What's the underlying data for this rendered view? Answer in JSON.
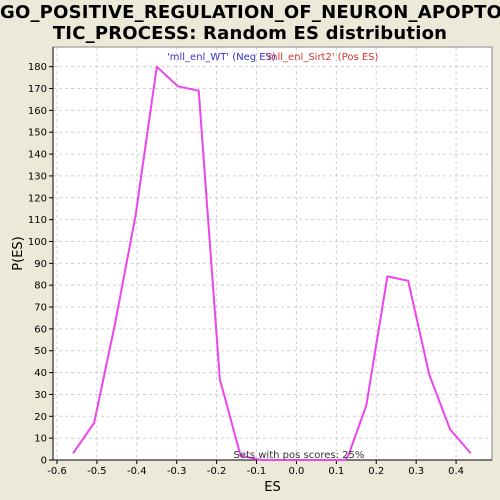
{
  "chart_data": {
    "type": "line",
    "title_lines": [
      "GO_POSITIVE_REGULATION_OF_NEURON_APOPTO",
      "TIC_PROCESS: Random ES distribution"
    ],
    "xlabel": "ES",
    "ylabel": "P(ES)",
    "xlim": [
      -0.61,
      0.49
    ],
    "ylim": [
      0,
      189
    ],
    "x_ticks": [
      -0.6,
      -0.5,
      -0.4,
      -0.3,
      -0.2,
      -0.1,
      0.0,
      0.1,
      0.2,
      0.3,
      0.4
    ],
    "x_tick_labels": [
      "-0.6",
      "-0.5",
      "-0.4",
      "-0.3",
      "-0.2",
      "-0.1",
      "0.0",
      "0.1",
      "0.2",
      "0.3",
      "0.4"
    ],
    "y_ticks": [
      0,
      10,
      20,
      30,
      40,
      50,
      60,
      70,
      80,
      90,
      100,
      110,
      120,
      130,
      140,
      150,
      160,
      170,
      180
    ],
    "grid": true,
    "legend": {
      "neg": "'mll_enl_WT' (Neg ES)",
      "pos": "'mll_enl_Sirt2' (Pos ES)",
      "placement": "top-center"
    },
    "annotation": "Sets with pos scores: 25%",
    "series": [
      {
        "color": "#ee44ee",
        "points": [
          [
            -0.56,
            3
          ],
          [
            -0.507,
            17
          ],
          [
            -0.455,
            62
          ],
          [
            -0.403,
            112
          ],
          [
            -0.35,
            180
          ],
          [
            -0.297,
            171
          ],
          [
            -0.245,
            169
          ],
          [
            -0.192,
            37
          ],
          [
            -0.14,
            2
          ],
          [
            -0.088,
            0
          ],
          [
            -0.035,
            0
          ],
          [
            0.018,
            0
          ],
          [
            0.07,
            0
          ],
          [
            0.122,
            0
          ],
          [
            0.13,
            2
          ],
          [
            0.175,
            25
          ],
          [
            0.228,
            84
          ],
          [
            0.28,
            82
          ],
          [
            0.333,
            39
          ],
          [
            0.385,
            14
          ],
          [
            0.437,
            3
          ]
        ]
      }
    ],
    "colors": {
      "background": "#ece9d8",
      "plot_bg": "#ffffff",
      "line": "#ee44ee",
      "grid": "#d0d0d0",
      "legend_neg": "#3333cc",
      "legend_pos": "#cc3333"
    }
  }
}
